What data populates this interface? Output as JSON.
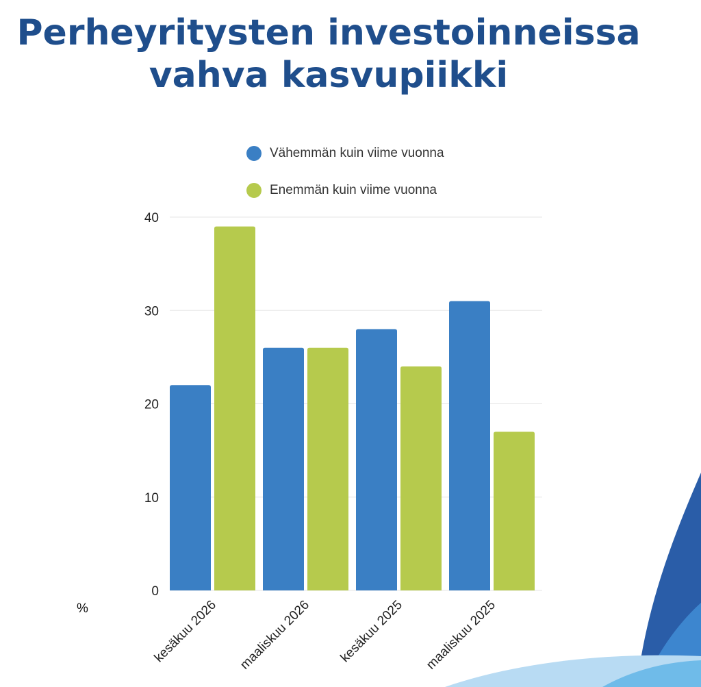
{
  "header": {
    "title_line1": "Perheyritysten investoinneissa",
    "title_line2": "vahva kasvupiikki"
  },
  "unit_label": "%",
  "colors": {
    "title": "#1f4e8c",
    "series_blue": "#3a7fc4",
    "series_green": "#b6ca4d",
    "grid": "#e6e6e6"
  },
  "chart_data": {
    "type": "bar",
    "title": "Perheyritysten investoinneissa vahva kasvupiikki",
    "categories": [
      "kesäkuu 2026",
      "maaliskuu 2026",
      "kesäkuu 2025",
      "maaliskuu 2025"
    ],
    "series": [
      {
        "name": "Vähemmän kuin viime vuonna",
        "color": "#3a7fc4",
        "values": [
          22,
          26,
          28,
          31
        ]
      },
      {
        "name": "Enemmän kuin viime vuonna",
        "color": "#b6ca4d",
        "values": [
          39,
          26,
          24,
          17
        ]
      }
    ],
    "ylabel": "%",
    "ylim": [
      0,
      40
    ],
    "yticks": [
      0,
      10,
      20,
      30,
      40
    ],
    "grid": true,
    "legend_position": "top"
  }
}
